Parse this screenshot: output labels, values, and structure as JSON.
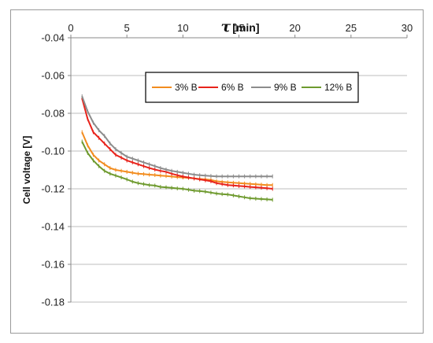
{
  "chart_data": {
    "type": "line",
    "title": "",
    "xlabel_symbol": "τ",
    "xlabel_unit": "[min]",
    "ylabel": "Cell voltage [V]",
    "xlim": [
      0,
      30
    ],
    "ylim": [
      -0.18,
      -0.04
    ],
    "x_ticks": [
      0,
      5,
      10,
      15,
      20,
      25,
      30
    ],
    "y_ticks": [
      -0.04,
      -0.06,
      -0.08,
      -0.1,
      -0.12,
      -0.14,
      -0.16,
      -0.18
    ],
    "x_tick_labels": [
      "0",
      "5",
      "10",
      "15",
      "20",
      "25",
      "30"
    ],
    "y_tick_labels": [
      "-0.04",
      "-0.06",
      "-0.08",
      "-0.10",
      "-0.12",
      "-0.14",
      "-0.16",
      "-0.18"
    ],
    "x_axis_position": "top",
    "grid": "horizontal",
    "legend_position": "top-right-inside",
    "x": [
      1,
      1.5,
      2,
      2.5,
      3,
      3.5,
      4,
      4.5,
      5,
      5.5,
      6,
      6.5,
      7,
      7.5,
      8,
      8.5,
      9,
      9.5,
      10,
      10.5,
      11,
      11.5,
      12,
      12.5,
      13,
      13.5,
      14,
      14.5,
      15,
      15.5,
      16,
      16.5,
      17,
      17.5,
      18
    ],
    "series": [
      {
        "name": "3% B",
        "color": "#f28c1e",
        "values": [
          -0.09,
          -0.097,
          -0.102,
          -0.105,
          -0.107,
          -0.109,
          -0.11,
          -0.1105,
          -0.111,
          -0.1115,
          -0.112,
          -0.1122,
          -0.1125,
          -0.1127,
          -0.113,
          -0.1132,
          -0.1135,
          -0.1138,
          -0.114,
          -0.1142,
          -0.1145,
          -0.1148,
          -0.115,
          -0.1153,
          -0.116,
          -0.1163,
          -0.1166,
          -0.1168,
          -0.117,
          -0.1172,
          -0.1174,
          -0.1176,
          -0.1178,
          -0.118,
          -0.118
        ]
      },
      {
        "name": "6% B",
        "color": "#e8231b",
        "values": [
          -0.072,
          -0.083,
          -0.09,
          -0.093,
          -0.096,
          -0.099,
          -0.102,
          -0.1035,
          -0.105,
          -0.106,
          -0.107,
          -0.108,
          -0.109,
          -0.1098,
          -0.1105,
          -0.111,
          -0.112,
          -0.1128,
          -0.1135,
          -0.114,
          -0.1145,
          -0.115,
          -0.1155,
          -0.116,
          -0.117,
          -0.1175,
          -0.118,
          -0.1182,
          -0.1185,
          -0.1187,
          -0.119,
          -0.1192,
          -0.1194,
          -0.1197,
          -0.12
        ]
      },
      {
        "name": "9% B",
        "color": "#8c8c8c",
        "values": [
          -0.071,
          -0.079,
          -0.085,
          -0.089,
          -0.092,
          -0.096,
          -0.099,
          -0.101,
          -0.103,
          -0.104,
          -0.105,
          -0.106,
          -0.107,
          -0.108,
          -0.109,
          -0.1098,
          -0.1105,
          -0.111,
          -0.1115,
          -0.112,
          -0.1125,
          -0.1128,
          -0.113,
          -0.1132,
          -0.1134,
          -0.1134,
          -0.1134,
          -0.1134,
          -0.1134,
          -0.1134,
          -0.1134,
          -0.1134,
          -0.1134,
          -0.1134,
          -0.1134
        ]
      },
      {
        "name": "12% B",
        "color": "#6e9a2e",
        "values": [
          -0.095,
          -0.101,
          -0.105,
          -0.108,
          -0.1105,
          -0.112,
          -0.113,
          -0.114,
          -0.115,
          -0.1162,
          -0.117,
          -0.1175,
          -0.118,
          -0.1183,
          -0.119,
          -0.1192,
          -0.1195,
          -0.1198,
          -0.12,
          -0.1205,
          -0.121,
          -0.1212,
          -0.1215,
          -0.122,
          -0.1225,
          -0.1228,
          -0.123,
          -0.1235,
          -0.124,
          -0.1245,
          -0.125,
          -0.1252,
          -0.1254,
          -0.1256,
          -0.1258
        ]
      }
    ]
  }
}
